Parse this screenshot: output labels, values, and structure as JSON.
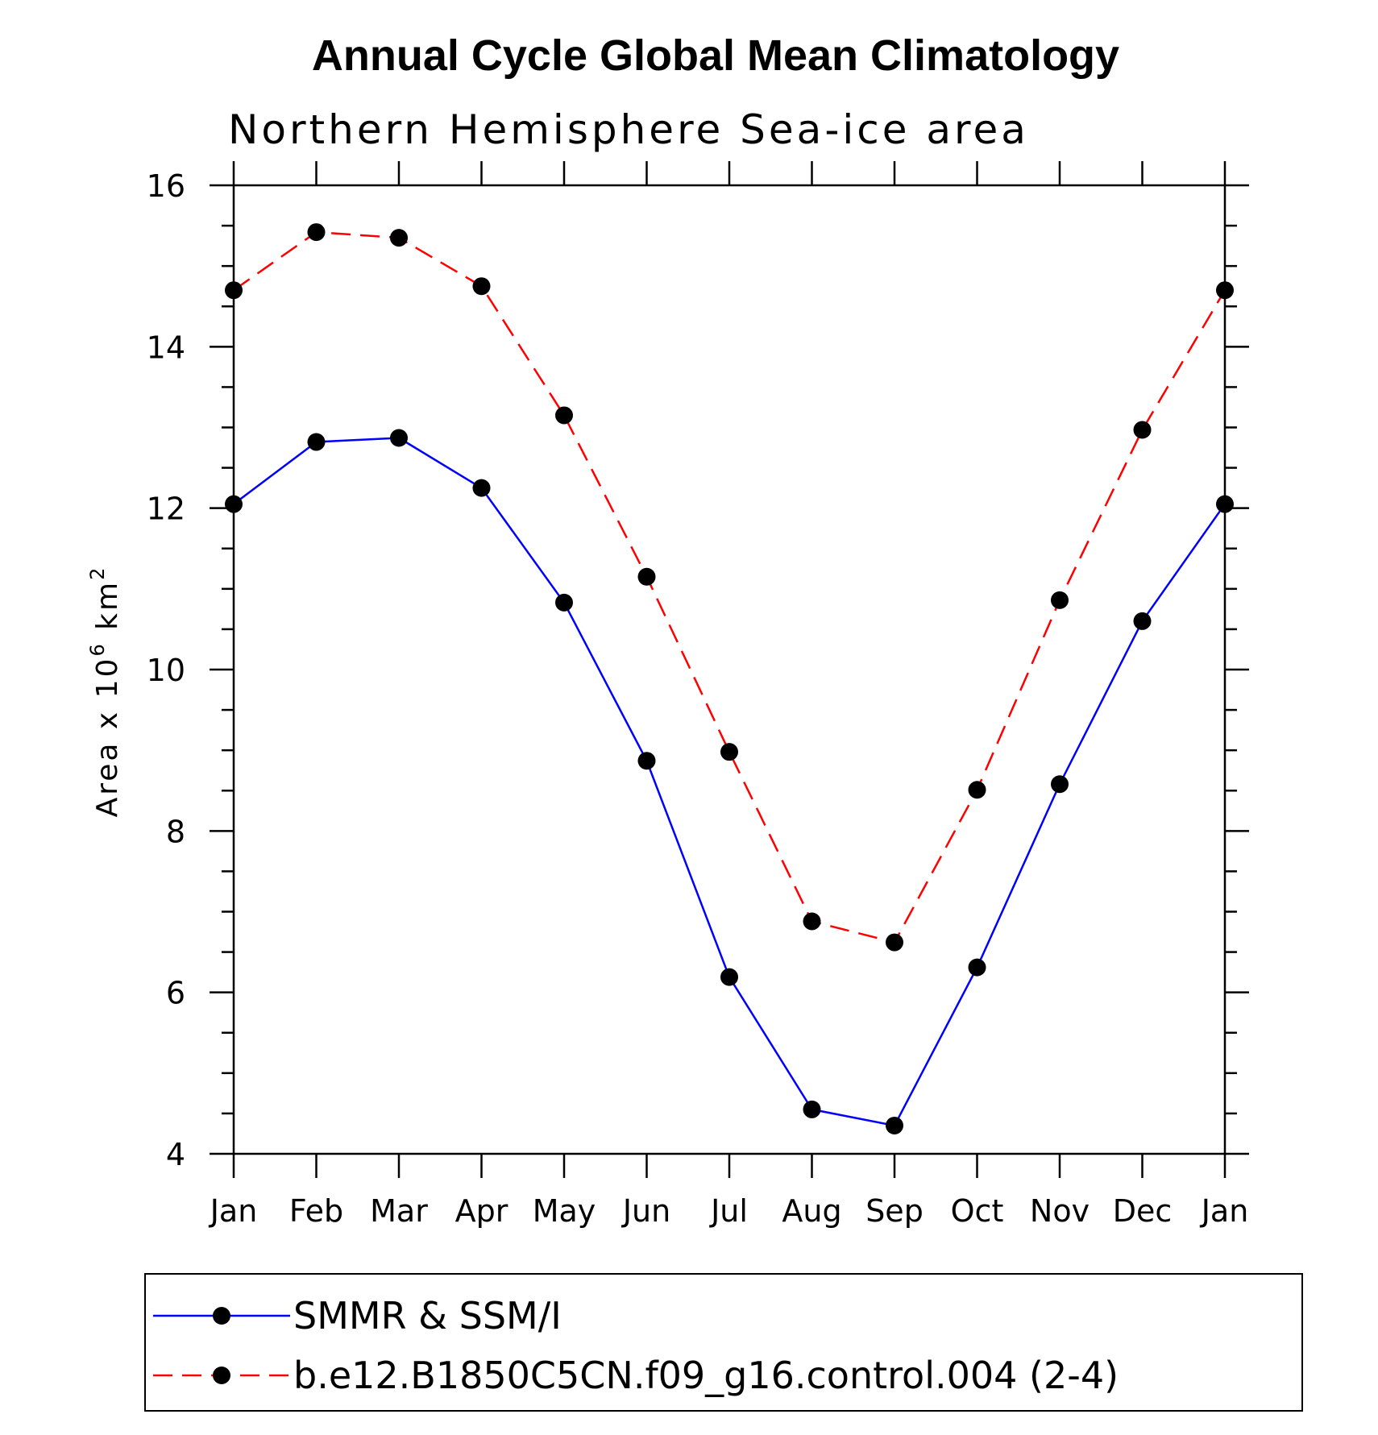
{
  "chart_data": {
    "type": "line",
    "title": "Annual Cycle Global Mean Climatology",
    "subtitle": "Northern Hemisphere Sea-ice area",
    "ylabel": "Area x 10",
    "ylabel_exponent": "6",
    "ylabel_unit": "km",
    "ylabel_unit_exponent": "2",
    "ylim": [
      4,
      16
    ],
    "yticks": [
      4,
      6,
      8,
      10,
      12,
      14,
      16
    ],
    "categories": [
      "Jan",
      "Feb",
      "Mar",
      "Apr",
      "May",
      "Jun",
      "Jul",
      "Aug",
      "Sep",
      "Oct",
      "Nov",
      "Dec",
      "Jan"
    ],
    "series": [
      {
        "name": "SMMR & SSM/I",
        "color": "#0000ff",
        "line_style": "solid",
        "marker": "filled-circle",
        "values": [
          12.05,
          12.82,
          12.87,
          12.25,
          10.83,
          8.87,
          6.19,
          4.55,
          4.35,
          6.31,
          8.58,
          10.6,
          12.05
        ]
      },
      {
        "name": "b.e12.B1850C5CN.f09_g16.control.004 (2-4)",
        "color": "#ff0000",
        "line_style": "dashed",
        "marker": "filled-circle",
        "values": [
          14.7,
          15.42,
          15.35,
          14.75,
          13.15,
          11.15,
          8.98,
          6.88,
          6.62,
          8.51,
          10.86,
          12.97,
          14.7
        ]
      }
    ]
  }
}
